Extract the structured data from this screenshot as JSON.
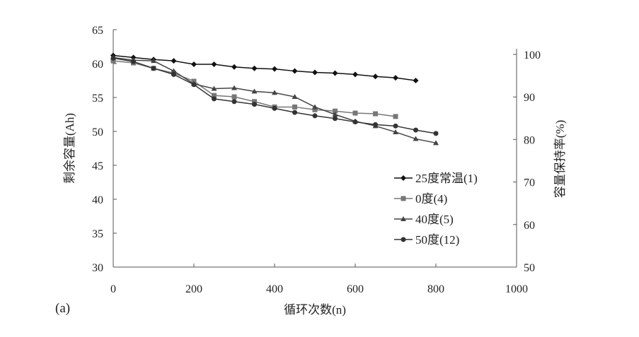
{
  "chart_data": {
    "type": "line",
    "panel_label": "(a)",
    "xlabel": "循环次数(n)",
    "ylabel": "剩余容量(Ah)",
    "y2label": "容量保持率(%)",
    "xlim": [
      0,
      1000
    ],
    "ylim": [
      30,
      65
    ],
    "y2lim": [
      50,
      100
    ],
    "xticks": [
      "0",
      "200",
      "400",
      "600",
      "800",
      "1000"
    ],
    "yticks": [
      "30",
      "35",
      "40",
      "45",
      "50",
      "55",
      "60",
      "65"
    ],
    "y2ticks": [
      "50",
      "60",
      "70",
      "80",
      "90",
      "100"
    ],
    "grid": false,
    "legend_position": "right",
    "series": [
      {
        "name": "25度常温(1)",
        "marker": "diamond",
        "color": "#111111",
        "x": [
          0,
          50,
          100,
          150,
          200,
          250,
          300,
          350,
          400,
          450,
          500,
          550,
          600,
          650,
          700,
          750
        ],
        "y": [
          61.2,
          60.9,
          60.6,
          60.4,
          59.9,
          59.9,
          59.5,
          59.3,
          59.2,
          58.9,
          58.7,
          58.6,
          58.4,
          58.1,
          57.9,
          57.5
        ]
      },
      {
        "name": "0度(4)",
        "marker": "square",
        "color": "#777777",
        "x": [
          0,
          50,
          100,
          150,
          200,
          250,
          300,
          350,
          400,
          450,
          500,
          550,
          600,
          650,
          700
        ],
        "y": [
          60.4,
          60.1,
          59.3,
          58.6,
          57.4,
          55.3,
          55.1,
          54.4,
          53.6,
          53.6,
          53.2,
          53.0,
          52.7,
          52.6,
          52.2
        ]
      },
      {
        "name": "40度(5)",
        "marker": "triangle",
        "color": "#444444",
        "x": [
          0,
          50,
          100,
          150,
          200,
          250,
          300,
          350,
          400,
          450,
          500,
          550,
          600,
          650,
          700,
          750,
          800
        ],
        "y": [
          60.9,
          60.5,
          60.4,
          58.9,
          57.0,
          56.3,
          56.4,
          55.9,
          55.7,
          55.1,
          53.6,
          52.5,
          51.5,
          50.8,
          49.9,
          48.9,
          48.3
        ]
      },
      {
        "name": "50度(12)",
        "marker": "circle",
        "color": "#333333",
        "x": [
          0,
          50,
          100,
          150,
          200,
          250,
          300,
          350,
          400,
          450,
          500,
          550,
          600,
          650,
          700,
          750,
          800
        ],
        "y": [
          60.8,
          60.3,
          59.3,
          58.4,
          56.9,
          54.8,
          54.4,
          54.0,
          53.4,
          52.8,
          52.3,
          51.9,
          51.4,
          51.0,
          50.8,
          50.2,
          49.7
        ]
      }
    ]
  }
}
